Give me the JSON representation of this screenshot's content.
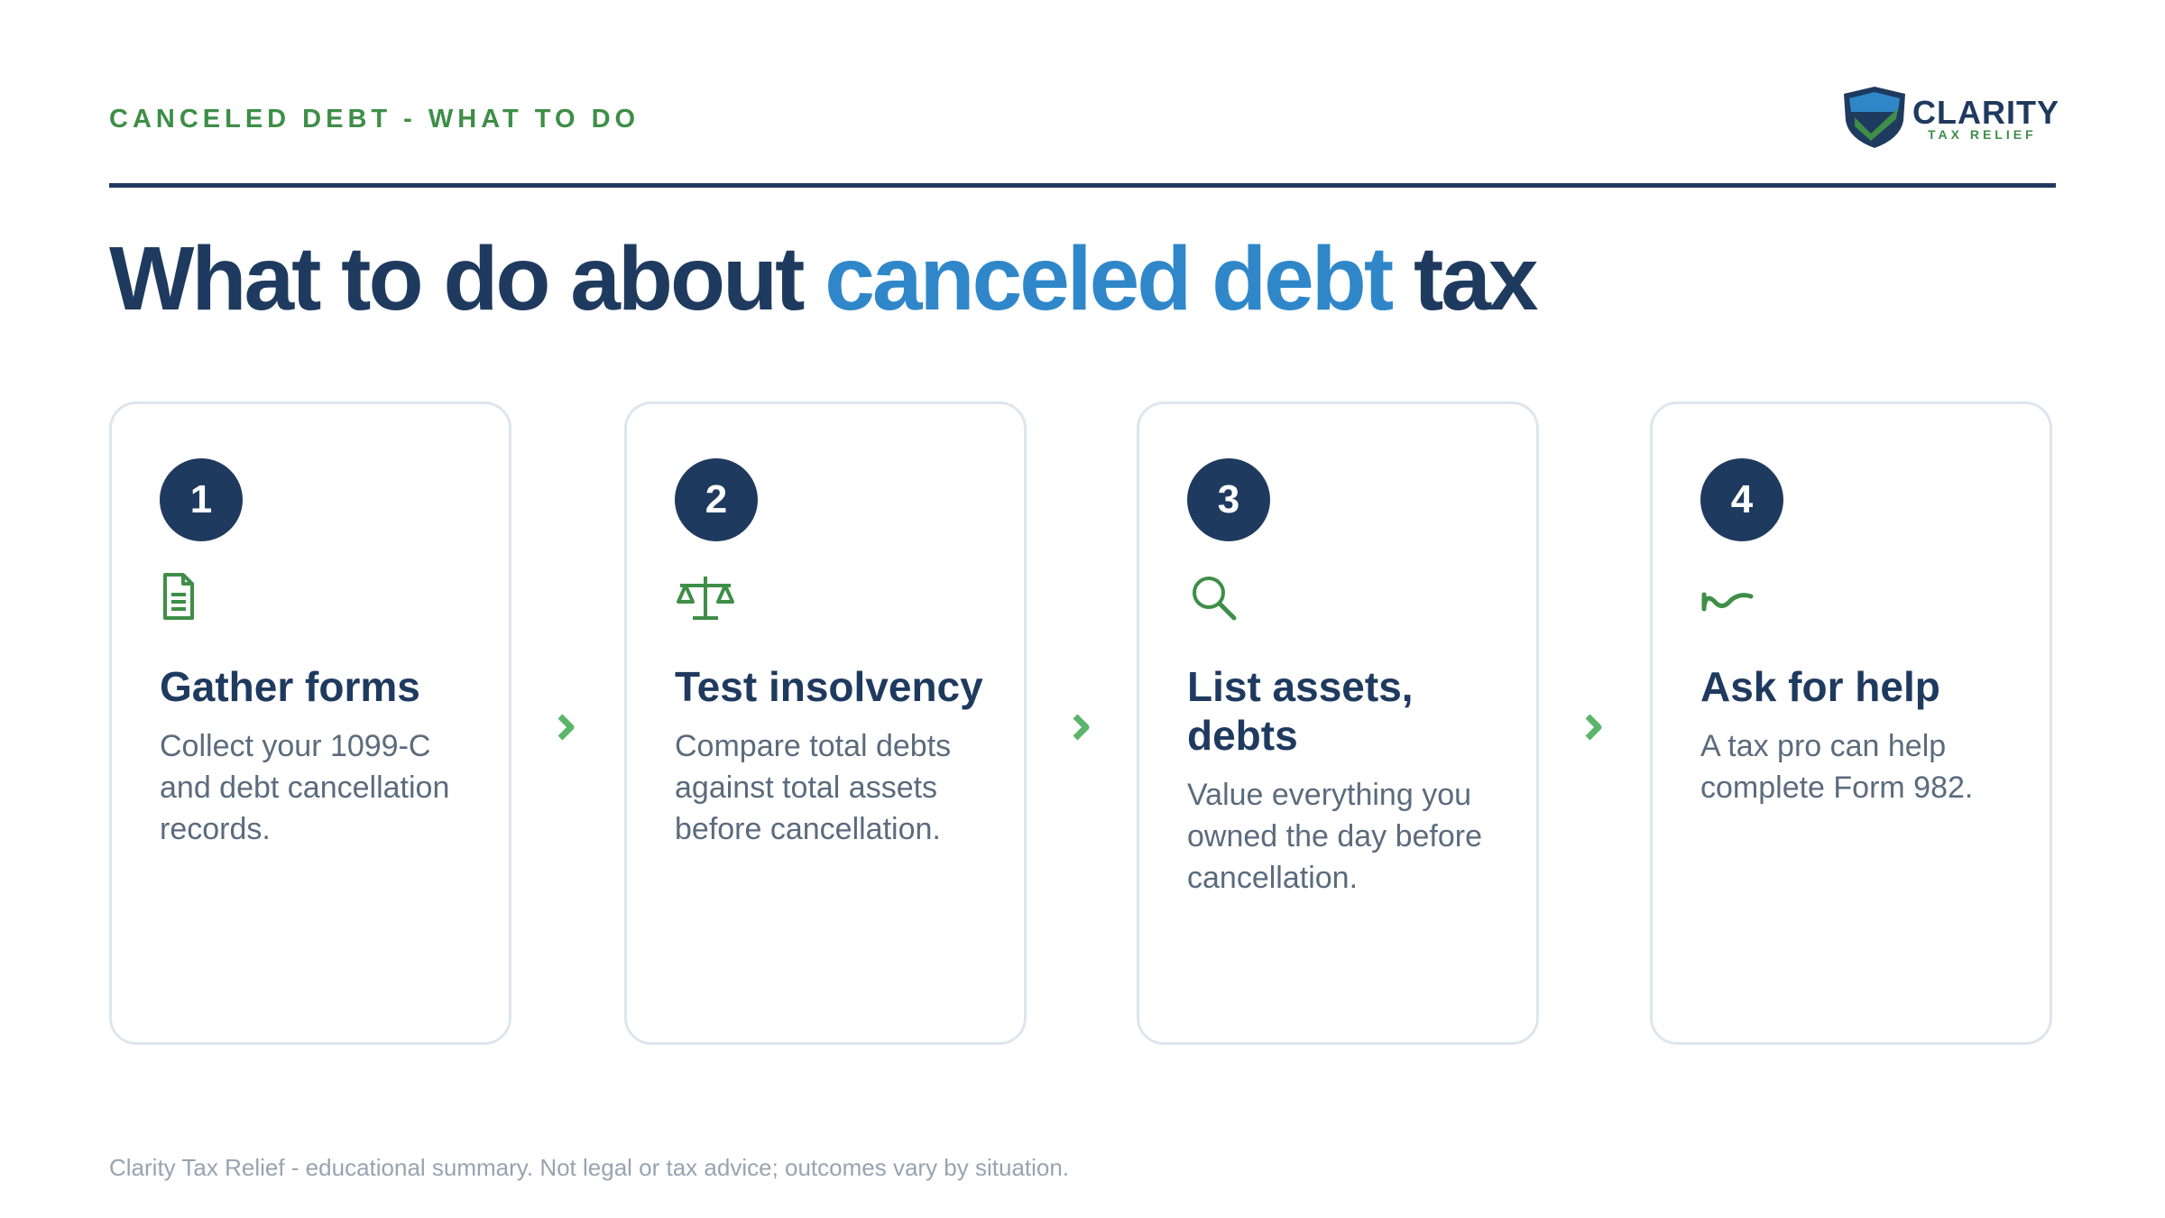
{
  "header": {
    "eyebrow": "CANCELED DEBT - WHAT TO DO",
    "logo": {
      "name": "CLARITY",
      "tagline": "TAX RELIEF"
    }
  },
  "title": {
    "before": "What to do about",
    "highlight": "canceled debt",
    "after": "tax"
  },
  "steps": [
    {
      "number": "1",
      "title": "Gather forms",
      "body": "Collect your 1099-C and debt cancellation records."
    },
    {
      "number": "2",
      "title": "Test insolvency",
      "body": "Compare total debts against total assets before cancellation."
    },
    {
      "number": "3",
      "title": "List assets, debts",
      "body": "Value everything you owned the day before cancellation."
    },
    {
      "number": "4",
      "title": "Ask for help",
      "body": "A tax pro can help complete Form 982."
    }
  ],
  "footer": "Clarity Tax Relief - educational summary. Not legal or tax advice; outcomes vary by situation."
}
